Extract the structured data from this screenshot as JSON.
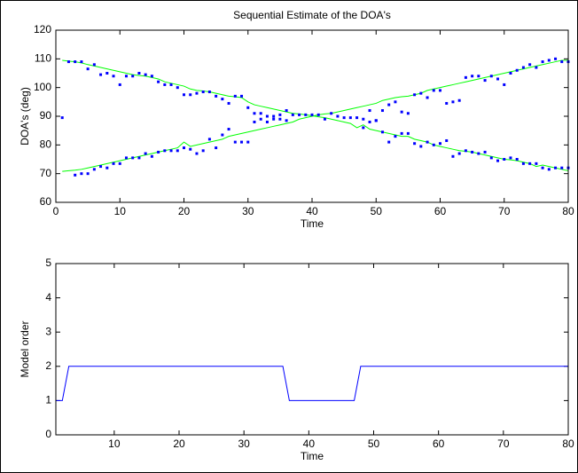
{
  "chart_data": [
    {
      "type": "line",
      "title": "Sequential Estimate of the DOA's",
      "xlabel": "Time",
      "ylabel": "DOA's (deg)",
      "xlim": [
        0,
        80
      ],
      "ylim": [
        60,
        120
      ],
      "xticks": [
        0,
        10,
        20,
        30,
        40,
        50,
        60,
        70,
        80
      ],
      "yticks": [
        60,
        70,
        80,
        90,
        100,
        110,
        120
      ],
      "x": [
        1,
        2,
        3,
        4,
        5,
        6,
        7,
        8,
        9,
        10,
        11,
        12,
        13,
        14,
        15,
        16,
        17,
        18,
        19,
        20,
        21,
        22,
        23,
        24,
        25,
        26,
        27,
        28,
        29,
        30,
        31,
        32,
        33,
        34,
        35,
        36,
        37,
        38,
        39,
        40,
        41,
        42,
        43,
        44,
        45,
        46,
        47,
        48,
        49,
        50,
        51,
        52,
        53,
        54,
        55,
        56,
        57,
        58,
        59,
        60,
        61,
        62,
        63,
        64,
        65,
        66,
        67,
        68,
        69,
        70,
        71,
        72,
        73,
        74,
        75,
        76,
        77,
        78,
        79,
        80
      ],
      "series": [
        {
          "color": "#00ff00",
          "mode": "line",
          "values": [
            109.5,
            109.2,
            109,
            108.6,
            108,
            107.5,
            107,
            106.5,
            106,
            105.5,
            105,
            104.5,
            104.2,
            104,
            103.5,
            103,
            102,
            101.5,
            101,
            100.5,
            99.5,
            99,
            98.8,
            98.5,
            98,
            97.5,
            97,
            96.8,
            96.5,
            95,
            94,
            93.5,
            93,
            92.5,
            92,
            91.5,
            91,
            90.8,
            90.5,
            90.2,
            89.8,
            89.5,
            89,
            88.5,
            88,
            87.5,
            86,
            87,
            85.5,
            85,
            84.5,
            84,
            83.5,
            83,
            83,
            82,
            81.5,
            81,
            80,
            79.5,
            79,
            78.5,
            78,
            77.8,
            77.5,
            77,
            76.5,
            76,
            75.5,
            75,
            74.8,
            74.5,
            74,
            73.5,
            72.5,
            73,
            72.5,
            72,
            71.5,
            71
          ]
        },
        {
          "color": "#00ff00",
          "mode": "line",
          "values": [
            70.8,
            71,
            71.2,
            71.5,
            72,
            72.5,
            73,
            73.5,
            74,
            74.5,
            75,
            75.5,
            76,
            76.5,
            77,
            77.5,
            78,
            78.5,
            79,
            81,
            79.5,
            80,
            80.5,
            81,
            81.5,
            82,
            83,
            83.5,
            84,
            84.5,
            85,
            85.5,
            86,
            86.5,
            87,
            87.5,
            88,
            89,
            89.5,
            90,
            90.5,
            90.8,
            91,
            91.5,
            92,
            92.5,
            93,
            93.5,
            94,
            94.5,
            95.5,
            96,
            96.5,
            96.8,
            97,
            97.5,
            98,
            99,
            99.5,
            100,
            100.5,
            101,
            101.5,
            102,
            102.5,
            103,
            103.5,
            104,
            104.5,
            105,
            105.5,
            106,
            106.5,
            107,
            107.5,
            108,
            108.5,
            109,
            109.5,
            109.5
          ]
        },
        {
          "color": "#0000ff",
          "mode": "markers",
          "values": [
            89.5,
            109,
            109,
            109,
            106.5,
            108,
            104.5,
            105,
            104,
            101,
            104,
            104,
            105,
            104.5,
            104,
            102,
            101,
            101,
            100,
            97.5,
            97.5,
            98,
            98.5,
            98.5,
            97,
            96,
            94.5,
            97,
            97,
            93,
            91,
            91,
            90,
            90,
            90.5,
            92,
            90.5,
            90.5,
            90.5,
            90.5,
            90.5,
            89,
            91,
            90,
            89.5,
            89.5,
            89.5,
            89,
            92,
            88.5,
            92,
            94,
            95,
            91.5,
            91,
            97.5,
            98,
            96.5,
            99,
            99,
            94.5,
            95,
            95.5,
            103.5,
            104,
            104,
            102.5,
            104,
            103,
            101,
            105,
            106,
            107,
            108,
            107,
            109,
            109.5,
            110,
            109,
            109
          ]
        },
        {
          "color": "#0000ff",
          "mode": "markers",
          "values": [
            null,
            null,
            69.5,
            70,
            70,
            71.5,
            72.5,
            72,
            73.5,
            73.5,
            75.5,
            75.5,
            75.5,
            77,
            76,
            77.5,
            78,
            78,
            78,
            79,
            78.5,
            77,
            78,
            82,
            79,
            83.5,
            85.5,
            81,
            81,
            81,
            88,
            89,
            88,
            89,
            89,
            88.5,
            null,
            null,
            null,
            null,
            null,
            null,
            null,
            null,
            null,
            null,
            null,
            86,
            88,
            88.5,
            84.5,
            81,
            83,
            84,
            84,
            80.5,
            79.5,
            81,
            80,
            80.5,
            81.5,
            76,
            77,
            78,
            77.5,
            77,
            77.5,
            75.5,
            74.5,
            75,
            75.5,
            75,
            73.5,
            73.5,
            73.5,
            72,
            71.5,
            72,
            72,
            72
          ]
        }
      ]
    },
    {
      "type": "line",
      "xlabel": "Time",
      "ylabel": "Model order",
      "xlim": [
        1,
        80
      ],
      "ylim": [
        0,
        5
      ],
      "xticks": [
        10,
        20,
        30,
        40,
        50,
        60,
        70,
        80
      ],
      "yticks": [
        0,
        1,
        2,
        3,
        4,
        5
      ],
      "x": [
        1,
        2,
        3,
        36,
        37,
        47,
        48,
        80
      ],
      "series": [
        {
          "color": "#0000ff",
          "mode": "line",
          "values": [
            1,
            1,
            2,
            2,
            1,
            1,
            2,
            2
          ]
        }
      ]
    }
  ]
}
